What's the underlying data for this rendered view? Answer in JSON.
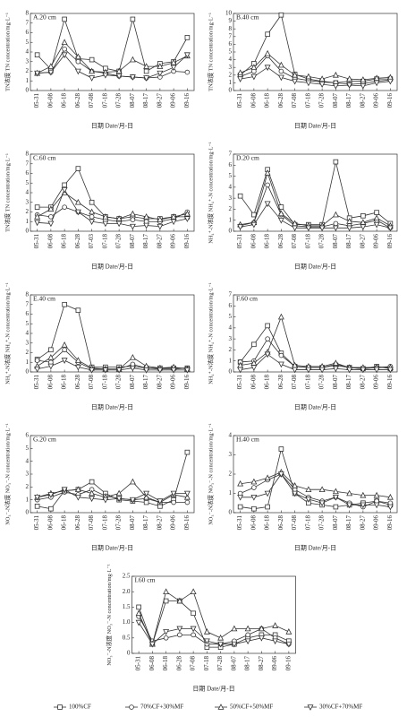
{
  "chart_data": [
    {
      "type": "line",
      "title": "A.20 cm",
      "ylabel": "TN浓度 TN concentration/mg·L⁻¹",
      "xlabel": "日期 Date/月-日",
      "categories": [
        "05-31",
        "06-08",
        "06-18",
        "06-28",
        "07-08",
        "07-18",
        "07-28",
        "08-07",
        "08-17",
        "08-27",
        "09-06",
        "09-16"
      ],
      "ylim": [
        0,
        8
      ],
      "yticks": [
        0,
        1,
        2,
        3,
        4,
        5,
        6,
        7,
        8
      ],
      "series": [
        {
          "name": "100%CF",
          "color": "#333333",
          "marker": "square",
          "values": [
            3.7,
            2.2,
            7.4,
            3.3,
            3.2,
            2.3,
            2.0,
            7.4,
            2.0,
            2.8,
            3.0,
            5.5
          ]
        },
        {
          "name": "70%CF+30%MF",
          "color": "#333333",
          "marker": "circle",
          "values": [
            1.8,
            1.9,
            4.3,
            3.0,
            2.0,
            1.8,
            1.5,
            1.4,
            1.3,
            1.4,
            2.0,
            1.9
          ]
        },
        {
          "name": "50%CF+50%MF",
          "color": "#333333",
          "marker": "triangle-up",
          "values": [
            1.8,
            2.5,
            5.0,
            3.5,
            2.0,
            1.9,
            2.0,
            3.2,
            2.5,
            2.5,
            2.9,
            3.6
          ]
        },
        {
          "name": "30%CF+70%MF",
          "color": "#333333",
          "marker": "triangle-down",
          "values": [
            1.8,
            1.9,
            3.7,
            2.0,
            1.3,
            1.6,
            1.5,
            1.4,
            1.3,
            1.8,
            2.4,
            3.7
          ]
        }
      ]
    },
    {
      "type": "line",
      "title": "B.40 cm",
      "ylabel": "TN浓度 TN concentration/mg·L⁻¹",
      "xlabel": "日期 Date/月-日",
      "categories": [
        "05-31",
        "06-08",
        "06-18",
        "06-28",
        "07-08",
        "07-18",
        "07-28",
        "08-07",
        "08-17",
        "08-27",
        "09-06",
        "09-16"
      ],
      "ylim": [
        0,
        10
      ],
      "yticks": [
        0,
        1,
        2,
        3,
        4,
        5,
        6,
        7,
        8,
        9,
        10
      ],
      "series": [
        {
          "name": "100%CF",
          "color": "#333333",
          "marker": "square",
          "values": [
            2.0,
            3.5,
            7.3,
            9.8,
            2.1,
            1.5,
            1.2,
            1.0,
            1.2,
            1.2,
            1.5,
            1.5
          ]
        },
        {
          "name": "70%CF+30%MF",
          "color": "#333333",
          "marker": "circle",
          "values": [
            1.8,
            2.5,
            4.5,
            2.5,
            1.6,
            1.3,
            1.1,
            1.0,
            0.8,
            0.9,
            1.2,
            1.4
          ]
        },
        {
          "name": "50%CF+50%MF",
          "color": "#333333",
          "marker": "triangle-up",
          "values": [
            2.3,
            3.0,
            4.8,
            3.3,
            2.0,
            1.8,
            1.5,
            2.0,
            1.5,
            1.4,
            1.6,
            1.7
          ]
        },
        {
          "name": "30%CF+70%MF",
          "color": "#333333",
          "marker": "triangle-down",
          "values": [
            1.5,
            1.8,
            3.0,
            1.7,
            1.2,
            1.0,
            0.8,
            0.6,
            0.7,
            0.6,
            1.0,
            1.2
          ]
        }
      ]
    },
    {
      "type": "line",
      "title": "C.60 cm",
      "ylabel": "TN浓度 TN concentration/mg·L⁻¹",
      "xlabel": "日期 Date/月-日",
      "categories": [
        "05-31",
        "06-08",
        "06-18",
        "06-28",
        "07-03",
        "07-18",
        "07-28",
        "08-07",
        "08-17",
        "08-27",
        "09-06",
        "09-16"
      ],
      "ylim": [
        0,
        8
      ],
      "yticks": [
        0,
        1,
        2,
        3,
        4,
        5,
        6,
        7,
        8
      ],
      "series": [
        {
          "name": "100%CF",
          "color": "#333333",
          "marker": "square",
          "values": [
            2.5,
            2.5,
            4.8,
            6.5,
            3.0,
            1.5,
            1.3,
            1.5,
            1.3,
            1.3,
            1.5,
            1.5
          ]
        },
        {
          "name": "70%CF+30%MF",
          "color": "#333333",
          "marker": "circle",
          "values": [
            1.7,
            1.5,
            2.5,
            2.0,
            1.5,
            1.2,
            1.0,
            1.2,
            1.0,
            1.0,
            1.3,
            2.0
          ]
        },
        {
          "name": "50%CF+50%MF",
          "color": "#333333",
          "marker": "triangle-up",
          "values": [
            1.5,
            2.3,
            4.0,
            3.0,
            2.0,
            1.5,
            1.3,
            1.8,
            1.5,
            1.2,
            1.5,
            1.8
          ]
        },
        {
          "name": "30%CF+70%MF",
          "color": "#333333",
          "marker": "triangle-down",
          "values": [
            0.9,
            0.8,
            4.3,
            2.0,
            1.0,
            0.8,
            0.8,
            0.5,
            0.6,
            0.5,
            1.0,
            1.3
          ]
        }
      ]
    },
    {
      "type": "line",
      "title": "D.20 cm",
      "ylabel": "NH₄⁺-N浓度 NH₄⁺-N concentration/mg·L⁻¹",
      "xlabel": "日期 Date/月-日",
      "categories": [
        "05-31",
        "06-08",
        "06-18",
        "06-28",
        "07-08",
        "07-18",
        "07-28",
        "08-07",
        "08-17",
        "08-27",
        "09-06",
        "09-16"
      ],
      "ylim": [
        0,
        7
      ],
      "yticks": [
        0,
        1,
        2,
        3,
        4,
        5,
        6,
        7
      ],
      "series": [
        {
          "name": "100%CF",
          "color": "#333333",
          "marker": "square",
          "values": [
            3.2,
            1.5,
            5.6,
            2.2,
            0.6,
            0.6,
            0.6,
            6.3,
            1.2,
            1.4,
            1.7,
            0.7
          ]
        },
        {
          "name": "70%CF+30%MF",
          "color": "#333333",
          "marker": "circle",
          "values": [
            0.5,
            0.8,
            4.2,
            1.5,
            0.5,
            0.4,
            0.4,
            0.7,
            0.5,
            0.7,
            1.0,
            0.3
          ]
        },
        {
          "name": "50%CF+50%MF",
          "color": "#333333",
          "marker": "triangle-up",
          "values": [
            0.6,
            0.8,
            5.3,
            1.6,
            0.7,
            0.5,
            0.5,
            1.5,
            0.9,
            0.8,
            1.2,
            0.5
          ]
        },
        {
          "name": "30%CF+70%MF",
          "color": "#333333",
          "marker": "triangle-down",
          "values": [
            0.4,
            0.6,
            2.5,
            1.0,
            0.3,
            0.3,
            0.3,
            0.3,
            0.3,
            0.4,
            0.6,
            0.3
          ]
        }
      ]
    },
    {
      "type": "line",
      "title": "E.40 cm",
      "ylabel": "NH₄⁺-N浓度 NH₄⁺-N concentration/mg·L⁻¹",
      "xlabel": "日期 Date/月-日",
      "categories": [
        "05-31",
        "06-08",
        "06-18",
        "06-28",
        "07-08",
        "07-18",
        "07-28",
        "08-07",
        "08-17",
        "08-27",
        "09-06",
        "09-16"
      ],
      "ylim": [
        0,
        8
      ],
      "yticks": [
        0,
        1,
        2,
        3,
        4,
        5,
        6,
        7,
        8
      ],
      "series": [
        {
          "name": "100%CF",
          "color": "#333333",
          "marker": "square",
          "values": [
            1.3,
            2.3,
            7.0,
            6.4,
            0.5,
            0.5,
            0.5,
            0.6,
            0.4,
            0.4,
            0.4,
            0.4
          ]
        },
        {
          "name": "70%CF+30%MF",
          "color": "#333333",
          "marker": "circle",
          "values": [
            1.2,
            1.0,
            2.3,
            1.0,
            0.3,
            0.3,
            0.3,
            0.8,
            0.4,
            0.3,
            0.3,
            0.4
          ]
        },
        {
          "name": "50%CF+50%MF",
          "color": "#333333",
          "marker": "triangle-up",
          "values": [
            0.6,
            1.5,
            2.8,
            1.2,
            0.4,
            0.3,
            0.3,
            1.5,
            0.6,
            0.4,
            0.5,
            0.3
          ]
        },
        {
          "name": "30%CF+70%MF",
          "color": "#333333",
          "marker": "triangle-down",
          "values": [
            0.3,
            0.6,
            1.2,
            0.5,
            0.2,
            0.2,
            0.2,
            0.4,
            0.2,
            0.2,
            0.2,
            0.2
          ]
        }
      ]
    },
    {
      "type": "line",
      "title": "F.60 cm",
      "ylabel": "NH₄⁺-N浓度 NH₄⁺-N concentration/mg·L⁻¹",
      "xlabel": "日期 Date/月-日",
      "categories": [
        "05-31",
        "06-08",
        "06-18",
        "06-28",
        "07-08",
        "07-18",
        "07-28",
        "08-07",
        "08-17",
        "08-27",
        "09-06",
        "09-16"
      ],
      "ylim": [
        0,
        7
      ],
      "yticks": [
        0,
        1,
        2,
        3,
        4,
        5,
        6,
        7
      ],
      "series": [
        {
          "name": "100%CF",
          "color": "#333333",
          "marker": "square",
          "values": [
            0.9,
            2.5,
            4.2,
            1.7,
            0.5,
            0.4,
            0.4,
            0.6,
            0.4,
            0.3,
            0.5,
            0.3
          ]
        },
        {
          "name": "70%CF+30%MF",
          "color": "#333333",
          "marker": "circle",
          "values": [
            0.9,
            1.0,
            3.0,
            1.5,
            0.5,
            0.4,
            0.4,
            0.7,
            0.4,
            0.3,
            0.4,
            0.5
          ]
        },
        {
          "name": "50%CF+50%MF",
          "color": "#333333",
          "marker": "triangle-up",
          "values": [
            0.6,
            0.8,
            1.8,
            5.0,
            0.6,
            0.5,
            0.5,
            0.8,
            0.4,
            0.4,
            0.4,
            0.4
          ]
        },
        {
          "name": "30%CF+70%MF",
          "color": "#333333",
          "marker": "triangle-down",
          "values": [
            0.2,
            0.4,
            1.6,
            0.7,
            0.2,
            0.2,
            0.2,
            0.3,
            0.2,
            0.2,
            0.2,
            0.2
          ]
        }
      ]
    },
    {
      "type": "line",
      "title": "G.20 cm",
      "ylabel": "NO₃⁻-N浓度 NO₃⁻-N concentration/mg·L⁻¹",
      "xlabel": "日期 Date/月-日",
      "categories": [
        "05-31",
        "06-08",
        "06-18",
        "06-28",
        "07-08",
        "07-18",
        "07-28",
        "08-07",
        "08-17",
        "08-27",
        "09-06",
        "09-16"
      ],
      "ylim": [
        0,
        6
      ],
      "yticks": [
        0,
        1,
        2,
        3,
        4,
        5,
        6
      ],
      "series": [
        {
          "name": "100%CF",
          "color": "#333333",
          "marker": "square",
          "values": [
            0.5,
            0.3,
            1.7,
            1.8,
            2.4,
            1.5,
            1.0,
            0.9,
            0.8,
            0.5,
            1.0,
            4.7
          ]
        },
        {
          "name": "70%CF+30%MF",
          "color": "#333333",
          "marker": "circle",
          "values": [
            1.0,
            1.2,
            1.6,
            1.4,
            1.8,
            1.3,
            1.1,
            1.0,
            1.1,
            0.8,
            0.8,
            0.8
          ]
        },
        {
          "name": "50%CF+50%MF",
          "color": "#333333",
          "marker": "triangle-up",
          "values": [
            1.2,
            1.5,
            1.7,
            1.8,
            1.5,
            1.2,
            1.5,
            2.4,
            1.2,
            0.8,
            1.4,
            1.2
          ]
        },
        {
          "name": "30%CF+70%MF",
          "color": "#333333",
          "marker": "triangle-down",
          "values": [
            1.2,
            1.4,
            1.8,
            1.2,
            1.1,
            1.0,
            1.1,
            1.0,
            1.5,
            0.9,
            1.5,
            1.5
          ]
        }
      ]
    },
    {
      "type": "line",
      "title": "H.40 cm",
      "ylabel": "NO₃⁻-N浓度 NO₃⁻-N concentration/mg·L⁻¹",
      "xlabel": "日期 Date/月-日",
      "categories": [
        "05-31",
        "06-08",
        "06-18",
        "06-28",
        "07-08",
        "07-18",
        "07-28",
        "08-07",
        "08-17",
        "08-27",
        "09-06",
        "09-16"
      ],
      "ylim": [
        0,
        4
      ],
      "yticks": [
        0,
        1,
        2,
        3,
        4
      ],
      "series": [
        {
          "name": "100%CF",
          "color": "#333333",
          "marker": "square",
          "values": [
            0.3,
            0.2,
            0.3,
            3.3,
            1.0,
            0.5,
            0.4,
            0.3,
            0.4,
            0.5,
            0.6,
            0.4
          ]
        },
        {
          "name": "70%CF+30%MF",
          "color": "#333333",
          "marker": "circle",
          "values": [
            1.0,
            1.3,
            1.7,
            2.0,
            1.2,
            0.8,
            0.6,
            0.8,
            0.5,
            0.3,
            0.6,
            0.5
          ]
        },
        {
          "name": "50%CF+50%MF",
          "color": "#333333",
          "marker": "triangle-up",
          "values": [
            1.5,
            1.6,
            1.8,
            2.1,
            1.4,
            1.2,
            1.2,
            1.1,
            1.0,
            0.9,
            0.9,
            0.8
          ]
        },
        {
          "name": "30%CF+70%MF",
          "color": "#333333",
          "marker": "triangle-down",
          "values": [
            0.8,
            0.8,
            1.0,
            2.0,
            1.0,
            0.7,
            0.5,
            0.8,
            0.4,
            0.4,
            0.4,
            0.3
          ]
        }
      ]
    },
    {
      "type": "line",
      "title": "I.60 cm",
      "ylabel": "NO₃⁻-N浓度 NO₃⁻-N concentration/mg·L⁻¹",
      "xlabel": "日期 Date/月-日",
      "categories": [
        "05-31",
        "06-08",
        "06-18",
        "06-28",
        "07-08",
        "07-18",
        "07-28",
        "08-07",
        "08-17",
        "08-27",
        "09-06",
        "09-16"
      ],
      "ylim": [
        0,
        2.5
      ],
      "yticks": [
        0,
        0.5,
        {
          "value": 1,
          "label": "1.0"
        },
        1.5,
        {
          "value": 2,
          "label": "2.0"
        },
        2.5
      ],
      "series": [
        {
          "name": "100%CF",
          "color": "#333333",
          "marker": "square",
          "values": [
            1.5,
            0.3,
            1.7,
            1.7,
            1.3,
            0.2,
            0.2,
            0.3,
            0.5,
            0.6,
            0.6,
            0.4
          ]
        },
        {
          "name": "70%CF+30%MF",
          "color": "#333333",
          "marker": "circle",
          "values": [
            1.2,
            0.4,
            0.5,
            0.6,
            0.6,
            0.3,
            0.3,
            0.4,
            0.6,
            0.8,
            0.5,
            0.3
          ]
        },
        {
          "name": "50%CF+50%MF",
          "color": "#333333",
          "marker": "triangle-up",
          "values": [
            1.3,
            0.3,
            2.0,
            1.7,
            2.0,
            0.7,
            0.5,
            0.8,
            0.8,
            0.8,
            0.9,
            0.7
          ]
        },
        {
          "name": "30%CF+70%MF",
          "color": "#333333",
          "marker": "triangle-down",
          "values": [
            1.0,
            0.3,
            0.7,
            0.8,
            0.8,
            0.4,
            0.3,
            0.3,
            0.4,
            0.5,
            0.4,
            0.3
          ]
        }
      ]
    }
  ]
}
